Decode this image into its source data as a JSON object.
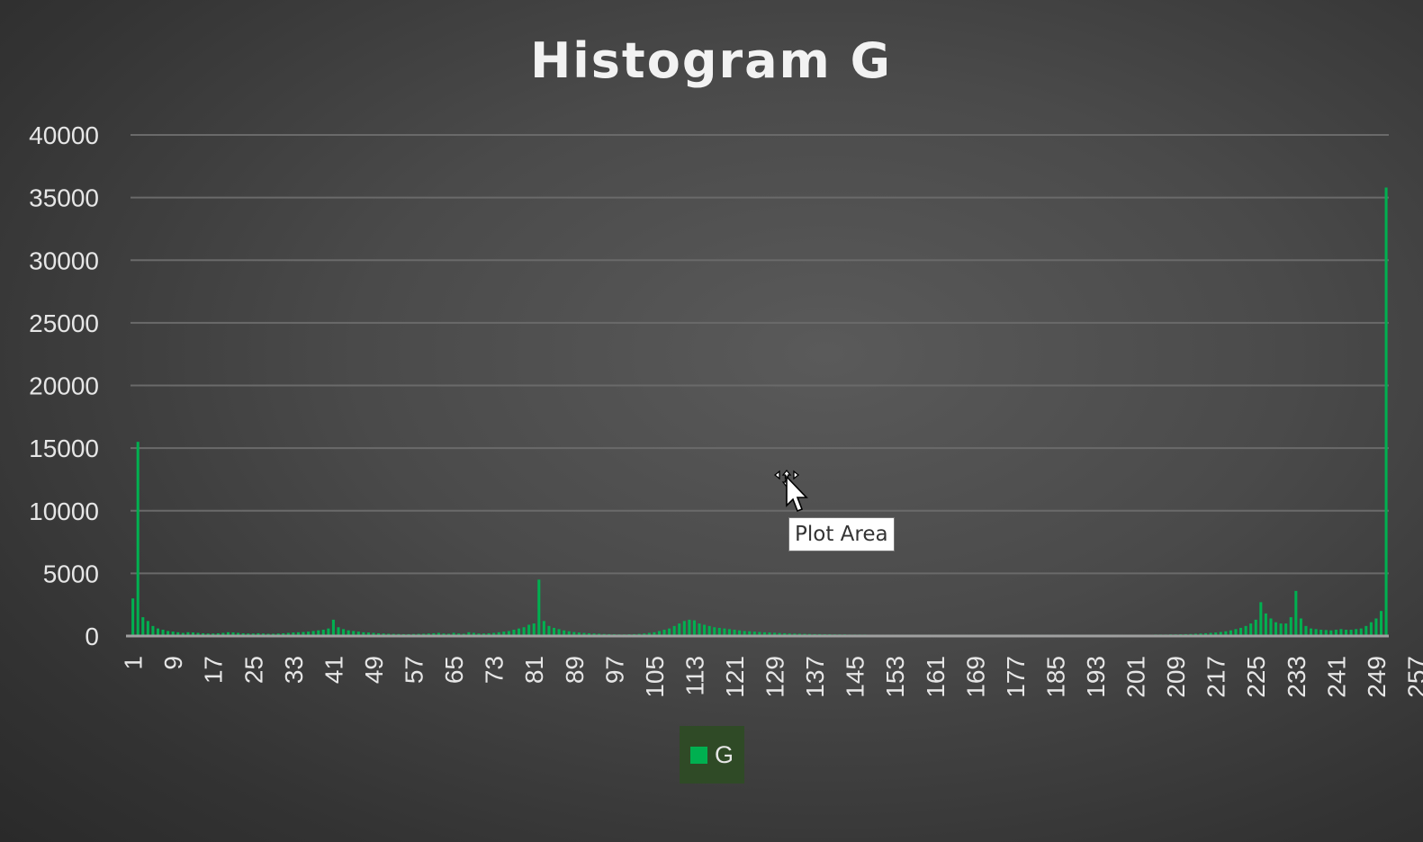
{
  "tooltip": {
    "text": "Plot Area"
  },
  "colors": {
    "series": "#00b050",
    "legend_bg": "#2f4a26",
    "text": "#e6e6e6"
  },
  "icons": {
    "cursor": "move-cursor-icon"
  },
  "chart_data": {
    "type": "bar",
    "title": "Histogram G",
    "xlabel": "",
    "ylabel": "",
    "ylim": [
      0,
      40000
    ],
    "yticks": [
      0,
      5000,
      10000,
      15000,
      20000,
      25000,
      30000,
      35000,
      40000
    ],
    "xtick_labels": [
      "1",
      "9",
      "17",
      "25",
      "33",
      "41",
      "49",
      "57",
      "65",
      "73",
      "81",
      "89",
      "97",
      "105",
      "113",
      "121",
      "129",
      "137",
      "145",
      "153",
      "161",
      "169",
      "177",
      "185",
      "193",
      "201",
      "209",
      "217",
      "225",
      "233",
      "241",
      "249",
      "257"
    ],
    "grid": true,
    "legend_position": "bottom",
    "categories_range": [
      1,
      256
    ],
    "series": [
      {
        "name": "G",
        "color": "#00b050",
        "values": [
          3000,
          15500,
          1500,
          1200,
          800,
          600,
          500,
          400,
          350,
          300,
          250,
          300,
          280,
          250,
          220,
          200,
          200,
          220,
          250,
          300,
          280,
          250,
          220,
          200,
          200,
          220,
          200,
          180,
          180,
          200,
          220,
          250,
          280,
          300,
          320,
          350,
          400,
          450,
          500,
          600,
          1300,
          700,
          550,
          450,
          400,
          350,
          300,
          280,
          250,
          220,
          200,
          180,
          170,
          160,
          150,
          150,
          160,
          170,
          180,
          200,
          220,
          250,
          200,
          180,
          250,
          200,
          180,
          300,
          250,
          200,
          200,
          220,
          250,
          300,
          350,
          400,
          500,
          600,
          700,
          900,
          1000,
          4500,
          1200,
          800,
          650,
          550,
          450,
          380,
          320,
          280,
          250,
          220,
          200,
          180,
          160,
          150,
          140,
          130,
          130,
          140,
          150,
          170,
          200,
          250,
          300,
          400,
          500,
          600,
          800,
          1000,
          1200,
          1300,
          1250,
          1000,
          900,
          800,
          700,
          650,
          600,
          550,
          500,
          450,
          400,
          380,
          350,
          320,
          300,
          280,
          260,
          240,
          220,
          200,
          190,
          180,
          170,
          160,
          150,
          150,
          140,
          140,
          130,
          130,
          130,
          120,
          120,
          120,
          120,
          110,
          110,
          110,
          110,
          110,
          110,
          110,
          110,
          110,
          110,
          110,
          110,
          110,
          110,
          110,
          110,
          110,
          110,
          110,
          110,
          110,
          110,
          110,
          110,
          110,
          110,
          110,
          110,
          110,
          110,
          110,
          110,
          110,
          110,
          110,
          110,
          110,
          110,
          110,
          110,
          110,
          110,
          110,
          110,
          110,
          110,
          110,
          110,
          110,
          110,
          110,
          110,
          110,
          110,
          110,
          110,
          110,
          120,
          120,
          120,
          130,
          130,
          140,
          150,
          160,
          180,
          200,
          220,
          250,
          280,
          320,
          380,
          450,
          550,
          650,
          800,
          1000,
          1300,
          2700,
          1800,
          1400,
          1100,
          1000,
          1000,
          1500,
          3600,
          1400,
          800,
          600,
          550,
          500,
          480,
          450,
          500,
          550,
          500,
          500,
          550,
          600,
          800,
          1100,
          1400,
          2000,
          35800
        ]
      }
    ]
  }
}
